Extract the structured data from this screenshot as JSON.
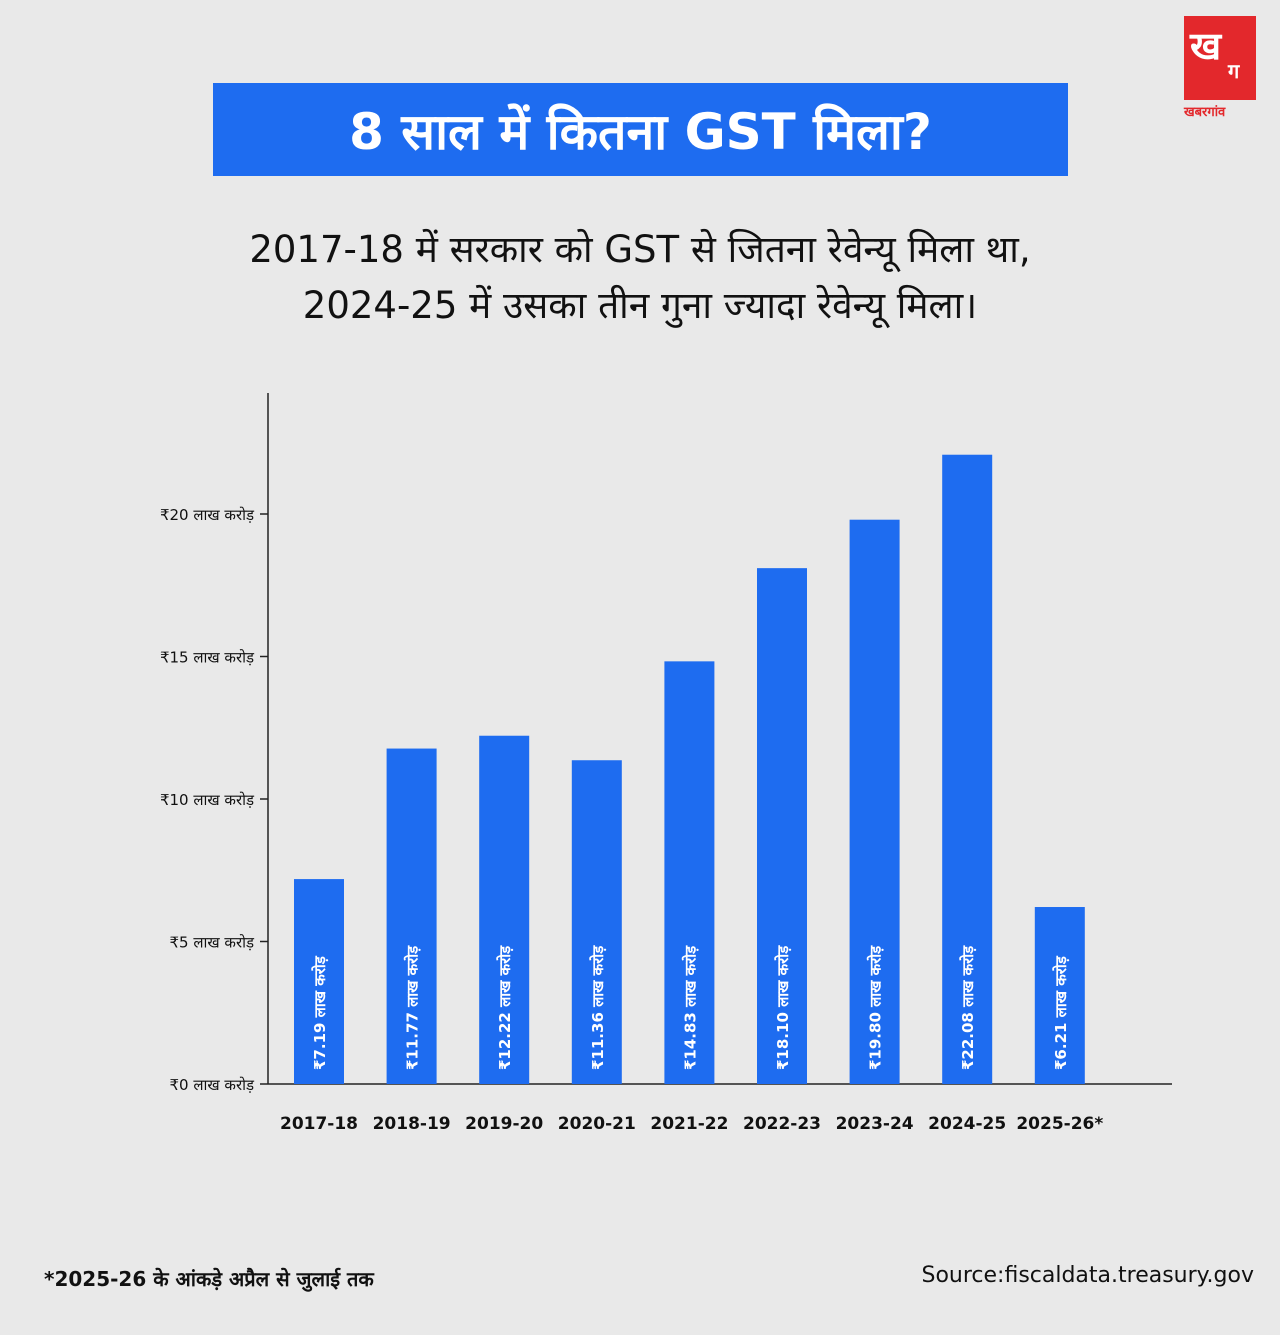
{
  "brand": {
    "logo_mark": "ख",
    "logo_sub": "ग",
    "logo_text": "खबरगांव",
    "color": "#e3282c"
  },
  "header": {
    "title": "8 साल में कितना GST मिला?"
  },
  "subtitle": {
    "line1": "2017-18 में सरकार को GST से जितना रेवेन्यू मिला था,",
    "line2": "2024-25 में उसका तीन गुना ज्यादा रेवेन्यू मिला।"
  },
  "chart_data": {
    "type": "bar",
    "title": "8 साल में कितना GST मिला?",
    "xlabel": "",
    "ylabel": "",
    "categories": [
      "2017-18",
      "2018-19",
      "2019-20",
      "2020-21",
      "2021-22",
      "2022-23",
      "2023-24",
      "2024-25",
      "2025-26*"
    ],
    "values": [
      7.19,
      11.77,
      12.22,
      11.36,
      14.83,
      18.1,
      19.8,
      22.08,
      6.21
    ],
    "bar_labels": [
      "₹7.19 लाख करोड़",
      "₹11.77 लाख करोड़",
      "₹12.22 लाख करोड़",
      "₹11.36 लाख करोड़",
      "₹14.83 लाख करोड़",
      "₹18.10 लाख करोड़",
      "₹19.80 लाख करोड़",
      "₹22.08 लाख करोड़",
      "₹6.21 लाख करोड़"
    ],
    "ylim": [
      0,
      24
    ],
    "yticks": [
      0,
      5,
      10,
      15,
      20
    ],
    "ytick_labels": [
      "₹0 लाख करोड़",
      "₹5 लाख करोड़",
      "₹10 लाख करोड़",
      "₹15 लाख करोड़",
      "₹20 लाख करोड़"
    ],
    "bar_color": "#1e6cf0",
    "grid": false
  },
  "footer": {
    "note": "*2025-26 के आंकड़े अप्रैल से जुलाई तक",
    "source": "Source:fiscaldata.treasury.gov"
  }
}
